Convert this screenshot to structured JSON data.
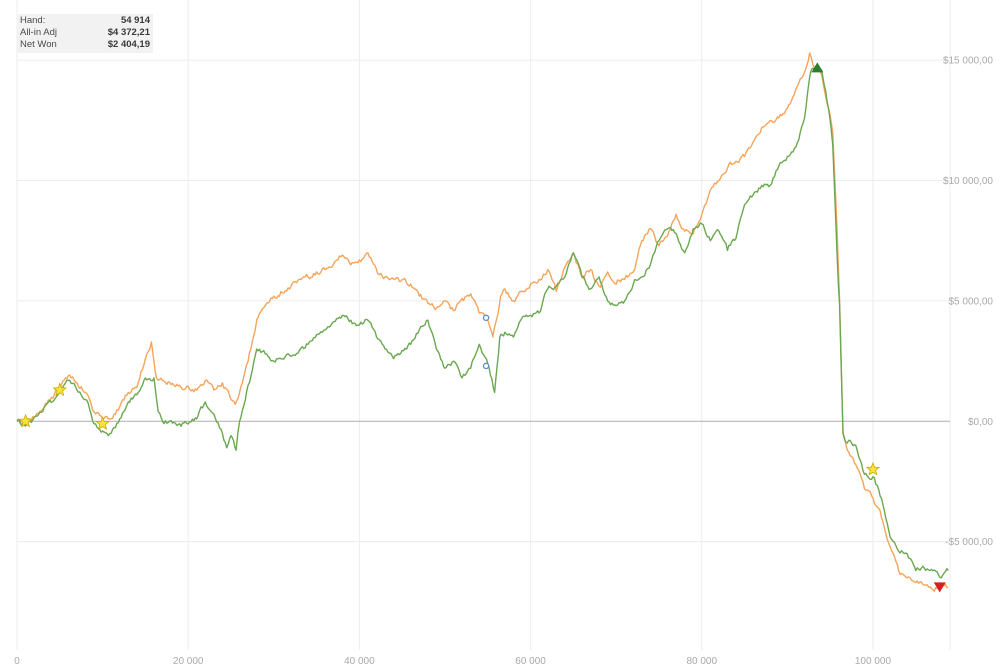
{
  "info_panel": {
    "rows": [
      {
        "label": "Hand:",
        "value": "54 914"
      },
      {
        "label": "All-in Adj",
        "value": "$4 372,21"
      },
      {
        "label": "Net Won",
        "value": "$2 404,19"
      }
    ]
  },
  "chart_data": {
    "type": "line",
    "title": "",
    "xlabel": "",
    "ylabel": "",
    "xlim": [
      0,
      109000
    ],
    "ylim": [
      -9500,
      17500
    ],
    "grid": true,
    "legend": "none",
    "x_ticks": [
      {
        "value": 0,
        "label": "0"
      },
      {
        "value": 20000,
        "label": "20 000"
      },
      {
        "value": 40000,
        "label": "40 000"
      },
      {
        "value": 60000,
        "label": "60 000"
      },
      {
        "value": 80000,
        "label": "80 000"
      },
      {
        "value": 100000,
        "label": "100 000"
      }
    ],
    "y_ticks": [
      {
        "value": 15000,
        "label": "$15 000,00"
      },
      {
        "value": 10000,
        "label": "$10 000,00"
      },
      {
        "value": 5000,
        "label": "$5 000,00"
      },
      {
        "value": 0,
        "label": "$0,00"
      },
      {
        "value": -5000,
        "label": "-$5 000,00"
      }
    ],
    "series": [
      {
        "color": "#f5a45a",
        "points": [
          [
            0,
            0
          ],
          [
            1000,
            -100
          ],
          [
            3000,
            500
          ],
          [
            5000,
            1400
          ],
          [
            6000,
            1900
          ],
          [
            7000,
            1600
          ],
          [
            8000,
            1200
          ],
          [
            9000,
            400
          ],
          [
            10000,
            100
          ],
          [
            11000,
            100
          ],
          [
            12000,
            600
          ],
          [
            13000,
            1200
          ],
          [
            14000,
            1400
          ],
          [
            15000,
            2600
          ],
          [
            15700,
            3300
          ],
          [
            16300,
            1800
          ],
          [
            17000,
            1700
          ],
          [
            19000,
            1500
          ],
          [
            21000,
            1300
          ],
          [
            22000,
            1700
          ],
          [
            23000,
            1300
          ],
          [
            24000,
            1600
          ],
          [
            25000,
            900
          ],
          [
            25500,
            700
          ],
          [
            26000,
            1200
          ],
          [
            27000,
            2500
          ],
          [
            28000,
            4200
          ],
          [
            29000,
            4800
          ],
          [
            30000,
            5200
          ],
          [
            32000,
            5600
          ],
          [
            34000,
            6000
          ],
          [
            36000,
            6300
          ],
          [
            38000,
            6900
          ],
          [
            39000,
            6500
          ],
          [
            40000,
            6700
          ],
          [
            41000,
            7000
          ],
          [
            42000,
            6300
          ],
          [
            43000,
            6000
          ],
          [
            44000,
            5900
          ],
          [
            46000,
            5700
          ],
          [
            47000,
            5200
          ],
          [
            48000,
            4900
          ],
          [
            49000,
            4700
          ],
          [
            50000,
            5000
          ],
          [
            51000,
            4600
          ],
          [
            52000,
            5100
          ],
          [
            53000,
            5300
          ],
          [
            54000,
            4500
          ],
          [
            55000,
            4200
          ],
          [
            55600,
            3500
          ],
          [
            56500,
            5200
          ],
          [
            57000,
            5500
          ],
          [
            58000,
            5000
          ],
          [
            59000,
            5400
          ],
          [
            61000,
            5900
          ],
          [
            62000,
            6300
          ],
          [
            63000,
            5400
          ],
          [
            64000,
            6400
          ],
          [
            65000,
            7000
          ],
          [
            66000,
            6000
          ],
          [
            67000,
            6300
          ],
          [
            68000,
            5600
          ],
          [
            69000,
            6200
          ],
          [
            70000,
            5700
          ],
          [
            71000,
            5900
          ],
          [
            72000,
            6200
          ],
          [
            73000,
            7500
          ],
          [
            74000,
            8000
          ],
          [
            75000,
            7300
          ],
          [
            76000,
            7700
          ],
          [
            77000,
            8600
          ],
          [
            78000,
            7900
          ],
          [
            79000,
            7800
          ],
          [
            80000,
            8600
          ],
          [
            81000,
            9600
          ],
          [
            82000,
            10000
          ],
          [
            83000,
            10500
          ],
          [
            84000,
            10800
          ],
          [
            85000,
            11000
          ],
          [
            86000,
            11600
          ],
          [
            87000,
            12200
          ],
          [
            88000,
            12500
          ],
          [
            89000,
            12600
          ],
          [
            90000,
            13000
          ],
          [
            91000,
            13800
          ],
          [
            92000,
            14500
          ],
          [
            92600,
            15300
          ],
          [
            93000,
            14800
          ],
          [
            93500,
            14600
          ],
          [
            94000,
            14400
          ],
          [
            94800,
            13000
          ],
          [
            95300,
            12000
          ],
          [
            95800,
            8000
          ],
          [
            96100,
            5000
          ],
          [
            96500,
            -500
          ],
          [
            97000,
            -1200
          ],
          [
            98000,
            -1800
          ],
          [
            99000,
            -2800
          ],
          [
            100000,
            -3200
          ],
          [
            101000,
            -4000
          ],
          [
            102000,
            -5200
          ],
          [
            103000,
            -6200
          ],
          [
            104000,
            -6500
          ],
          [
            105000,
            -6700
          ],
          [
            106000,
            -6800
          ],
          [
            107000,
            -7000
          ],
          [
            108000,
            -6800
          ],
          [
            108800,
            -6900
          ]
        ]
      },
      {
        "color": "#6aa84f",
        "points": [
          [
            0,
            0
          ],
          [
            1000,
            -200
          ],
          [
            3000,
            400
          ],
          [
            5000,
            1200
          ],
          [
            6000,
            1700
          ],
          [
            7000,
            1300
          ],
          [
            8000,
            900
          ],
          [
            9000,
            -100
          ],
          [
            10000,
            -400
          ],
          [
            11000,
            -500
          ],
          [
            12000,
            100
          ],
          [
            13000,
            800
          ],
          [
            14000,
            1100
          ],
          [
            15000,
            1800
          ],
          [
            16000,
            1800
          ],
          [
            16500,
            400
          ],
          [
            17000,
            0
          ],
          [
            19000,
            -100
          ],
          [
            21000,
            100
          ],
          [
            22000,
            800
          ],
          [
            23000,
            300
          ],
          [
            24000,
            -500
          ],
          [
            24500,
            -1100
          ],
          [
            25000,
            -600
          ],
          [
            25600,
            -1200
          ],
          [
            26000,
            0
          ],
          [
            27000,
            1500
          ],
          [
            28000,
            3000
          ],
          [
            29000,
            2800
          ],
          [
            30000,
            2500
          ],
          [
            32000,
            2700
          ],
          [
            34000,
            3200
          ],
          [
            36000,
            3800
          ],
          [
            38000,
            4400
          ],
          [
            39000,
            4200
          ],
          [
            40000,
            4000
          ],
          [
            41000,
            4200
          ],
          [
            42000,
            3500
          ],
          [
            43000,
            3000
          ],
          [
            44000,
            2600
          ],
          [
            46000,
            3200
          ],
          [
            47000,
            3800
          ],
          [
            48000,
            4200
          ],
          [
            49000,
            3000
          ],
          [
            50000,
            2200
          ],
          [
            51000,
            2500
          ],
          [
            52000,
            1800
          ],
          [
            53000,
            2200
          ],
          [
            54000,
            3200
          ],
          [
            55000,
            2400
          ],
          [
            55800,
            1200
          ],
          [
            56400,
            3500
          ],
          [
            57000,
            3700
          ],
          [
            58000,
            3500
          ],
          [
            59000,
            4300
          ],
          [
            61000,
            4500
          ],
          [
            62000,
            5500
          ],
          [
            63000,
            5600
          ],
          [
            64000,
            6000
          ],
          [
            65000,
            7000
          ],
          [
            66000,
            6000
          ],
          [
            67000,
            5500
          ],
          [
            68000,
            6000
          ],
          [
            69000,
            5000
          ],
          [
            70000,
            4800
          ],
          [
            71000,
            5000
          ],
          [
            72000,
            5700
          ],
          [
            73000,
            6000
          ],
          [
            74000,
            6500
          ],
          [
            75000,
            7500
          ],
          [
            76000,
            8000
          ],
          [
            77000,
            7800
          ],
          [
            78000,
            7000
          ],
          [
            79000,
            8000
          ],
          [
            80000,
            8200
          ],
          [
            81000,
            7500
          ],
          [
            82000,
            7900
          ],
          [
            83000,
            7100
          ],
          [
            84000,
            7600
          ],
          [
            85000,
            9000
          ],
          [
            86000,
            9400
          ],
          [
            87000,
            9800
          ],
          [
            88000,
            9800
          ],
          [
            89000,
            10600
          ],
          [
            90000,
            11000
          ],
          [
            91000,
            11400
          ],
          [
            92000,
            12600
          ],
          [
            92700,
            14500
          ],
          [
            93300,
            14700
          ],
          [
            94000,
            14600
          ],
          [
            94800,
            13000
          ],
          [
            95300,
            11500
          ],
          [
            95800,
            7000
          ],
          [
            96100,
            4800
          ],
          [
            96500,
            -500
          ],
          [
            97000,
            -900
          ],
          [
            98000,
            -1000
          ],
          [
            99000,
            -2200
          ],
          [
            100000,
            -2300
          ],
          [
            101000,
            -3200
          ],
          [
            102000,
            -4800
          ],
          [
            103000,
            -5400
          ],
          [
            104000,
            -5500
          ],
          [
            105000,
            -6200
          ],
          [
            106000,
            -6100
          ],
          [
            107000,
            -6200
          ],
          [
            108000,
            -6500
          ],
          [
            108800,
            -6200
          ]
        ]
      }
    ],
    "markers": [
      {
        "shape": "star",
        "x": 1000,
        "y": 0,
        "color": "#f7e436"
      },
      {
        "shape": "star",
        "x": 5000,
        "y": 1300,
        "color": "#f7e436"
      },
      {
        "shape": "star",
        "x": 10000,
        "y": -100,
        "color": "#f7e436"
      },
      {
        "shape": "star",
        "x": 100000,
        "y": -2000,
        "color": "#f7e436"
      },
      {
        "shape": "circle",
        "x": 54800,
        "y": 4300,
        "color": "#5b8ed6"
      },
      {
        "shape": "circle",
        "x": 54800,
        "y": 2300,
        "color": "#5b8ed6"
      },
      {
        "shape": "triangle-up",
        "x": 93500,
        "y": 14700,
        "color": "#2c7f2c"
      },
      {
        "shape": "triangle-down",
        "x": 107800,
        "y": -6900,
        "color": "#d62020"
      }
    ]
  }
}
